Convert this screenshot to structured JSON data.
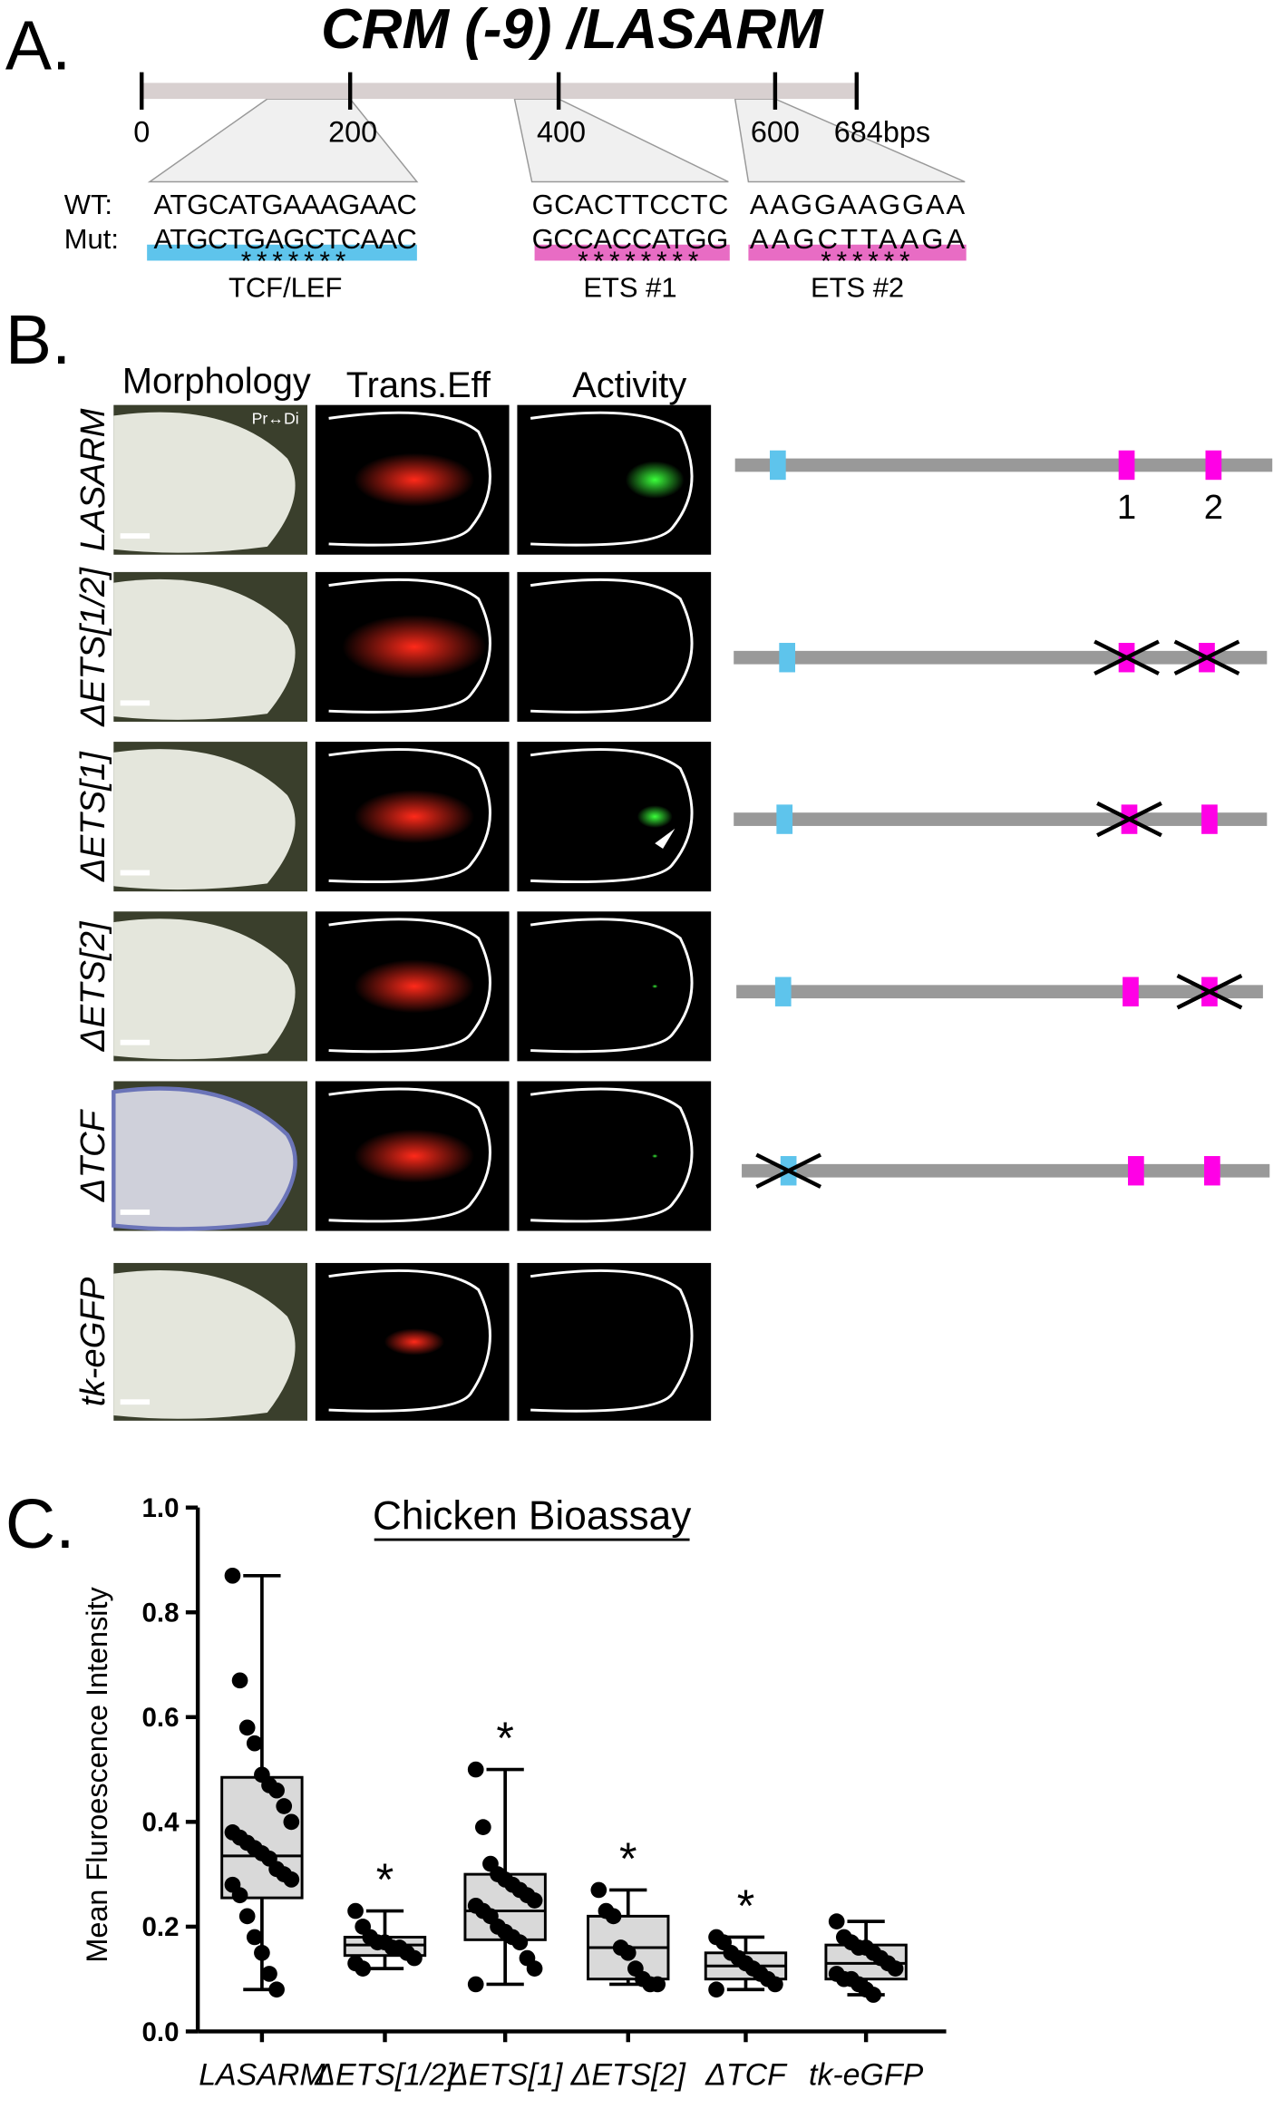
{
  "panel_a": {
    "label": "A.",
    "title": "CRM (-9) /LASARM",
    "ruler_labels": [
      "0",
      "200",
      "400",
      "600",
      "684bps"
    ],
    "row_labels": [
      "WT:",
      "Mut:"
    ],
    "sites": [
      {
        "wt": "ATGCATGAAAGAAC",
        "mut": "ATGCTGAGCTCAAC",
        "stars": "*******",
        "name": "TCF/LEF"
      },
      {
        "wt": "GCACTTCCTC",
        "mut": "GCCACCATGG",
        "stars": "********",
        "name": "ETS #1"
      },
      {
        "wt": "AAGGAAGGAA",
        "mut": "AAGCTTAAGA",
        "stars": "******",
        "name": "ETS #2"
      }
    ]
  },
  "panel_b": {
    "label": "B.",
    "columns": [
      "Morphology",
      "Trans.Eff",
      "Activity"
    ],
    "orientation": "Pr↔Di",
    "rows": [
      "LASARM",
      "ΔETS[1/2]",
      "ΔETS[1]",
      "ΔETS[2]",
      "ΔTCF",
      "tk-eGFP"
    ],
    "site_numbers": [
      "1",
      "2"
    ]
  },
  "panel_c": {
    "label": "C.",
    "chart_data": {
      "type": "box",
      "title": "Chicken Bioassay",
      "y_label": "Mean Fluroescence Intensity",
      "categories": [
        "LASARM",
        "ΔETS[1/2]",
        "ΔETS[1]",
        "ΔETS[2]",
        "ΔTCF",
        "tk-eGFP"
      ],
      "ylim": [
        0,
        1
      ],
      "yticks": [
        {
          "value": 0,
          "label": "0.0"
        },
        0.2,
        0.4,
        0.6,
        0.8,
        {
          "value": 1,
          "label": "1.0"
        }
      ],
      "box_color": "#d9d9d9",
      "point_color": "#000000",
      "significance_labels": [
        null,
        "*",
        "*",
        "*",
        "*",
        null
      ],
      "boxes": [
        {
          "min": 0.08,
          "q1": 0.255,
          "median": 0.335,
          "q3": 0.485,
          "max": 0.87,
          "points": [
            0.87,
            0.67,
            0.58,
            0.55,
            0.49,
            0.47,
            0.46,
            0.43,
            0.4,
            0.38,
            0.37,
            0.36,
            0.35,
            0.34,
            0.33,
            0.31,
            0.3,
            0.29,
            0.28,
            0.26,
            0.22,
            0.18,
            0.15,
            0.11,
            0.08
          ]
        },
        {
          "min": 0.12,
          "q1": 0.145,
          "median": 0.165,
          "q3": 0.18,
          "max": 0.23,
          "points": [
            0.23,
            0.2,
            0.18,
            0.17,
            0.17,
            0.16,
            0.16,
            0.15,
            0.14,
            0.13,
            0.12
          ]
        },
        {
          "min": 0.09,
          "q1": 0.175,
          "median": 0.23,
          "q3": 0.3,
          "max": 0.5,
          "points": [
            0.5,
            0.39,
            0.32,
            0.3,
            0.29,
            0.28,
            0.27,
            0.26,
            0.25,
            0.24,
            0.23,
            0.22,
            0.2,
            0.19,
            0.18,
            0.17,
            0.14,
            0.12,
            0.09
          ]
        },
        {
          "min": 0.09,
          "q1": 0.1,
          "median": 0.16,
          "q3": 0.22,
          "max": 0.27,
          "points": [
            0.27,
            0.23,
            0.22,
            0.16,
            0.15,
            0.12,
            0.1,
            0.09,
            0.09
          ]
        },
        {
          "min": 0.08,
          "q1": 0.1,
          "median": 0.125,
          "q3": 0.15,
          "max": 0.18,
          "points": [
            0.18,
            0.17,
            0.15,
            0.14,
            0.13,
            0.12,
            0.11,
            0.1,
            0.09,
            0.08
          ]
        },
        {
          "min": 0.07,
          "q1": 0.1,
          "median": 0.13,
          "q3": 0.165,
          "max": 0.21,
          "points": [
            0.21,
            0.18,
            0.17,
            0.16,
            0.16,
            0.15,
            0.14,
            0.13,
            0.12,
            0.11,
            0.1,
            0.1,
            0.09,
            0.08,
            0.07
          ]
        }
      ]
    }
  }
}
